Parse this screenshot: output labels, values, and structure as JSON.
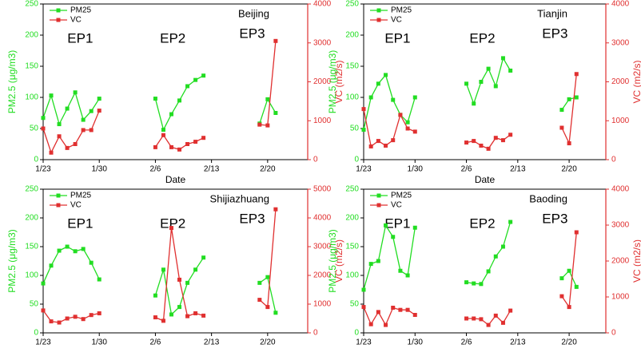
{
  "chart_data": [
    {
      "type": "line",
      "title": "Beijing",
      "annotations": [
        "EP1",
        "EP2",
        "EP3"
      ],
      "xlabel": "Date",
      "ylabel": "PM2.5 (μg/m3)",
      "y2label": "VC (m2/s)",
      "legend": "upper left",
      "x": [
        "1/23",
        "1/24",
        "1/25",
        "1/26",
        "1/27",
        "1/28",
        "1/29",
        "1/30",
        "1/31",
        "2/1",
        "2/2",
        "2/3",
        "2/4",
        "2/5",
        "2/6",
        "2/7",
        "2/8",
        "2/9",
        "2/10",
        "2/11",
        "2/12",
        "2/13",
        "2/14",
        "2/15",
        "2/16",
        "2/17",
        "2/18",
        "2/19",
        "2/20",
        "2/21"
      ],
      "xlim": [
        "1/23",
        "2/25"
      ],
      "xticks": [
        "1/23",
        "1/30",
        "2/6",
        "2/13",
        "2/20"
      ],
      "ylim": [
        0,
        250
      ],
      "yticks": [
        0,
        50,
        100,
        150,
        200,
        250
      ],
      "y2lim": [
        0,
        4000
      ],
      "y2ticks": [
        0,
        1000,
        2000,
        3000,
        4000
      ],
      "series": [
        {
          "name": "PM25",
          "color": "#22dd22",
          "marker": "square",
          "values": [
            67,
            103,
            57,
            82,
            108,
            64,
            78,
            98,
            null,
            null,
            null,
            null,
            null,
            null,
            98,
            48,
            73,
            95,
            118,
            128,
            135,
            null,
            null,
            null,
            null,
            null,
            null,
            58,
            97,
            75
          ]
        },
        {
          "name": "VC",
          "color": "#e03030",
          "marker": "square",
          "axis": "y2",
          "values": [
            800,
            180,
            600,
            300,
            400,
            760,
            760,
            1260,
            null,
            null,
            null,
            null,
            null,
            null,
            320,
            630,
            320,
            260,
            400,
            460,
            560,
            null,
            null,
            null,
            null,
            null,
            null,
            900,
            880,
            3050
          ]
        }
      ]
    },
    {
      "type": "line",
      "title": "Tianjin",
      "annotations": [
        "EP1",
        "EP2",
        "EP3"
      ],
      "xlabel": "Date",
      "ylabel": "PM2.5 (μg/m3)",
      "y2label": "VC (m2/s)",
      "legend": "upper left",
      "x": [
        "1/23",
        "1/24",
        "1/25",
        "1/26",
        "1/27",
        "1/28",
        "1/29",
        "1/30",
        "1/31",
        "2/1",
        "2/2",
        "2/3",
        "2/4",
        "2/5",
        "2/6",
        "2/7",
        "2/8",
        "2/9",
        "2/10",
        "2/11",
        "2/12",
        "2/13",
        "2/14",
        "2/15",
        "2/16",
        "2/17",
        "2/18",
        "2/19",
        "2/20",
        "2/21"
      ],
      "xlim": [
        "1/23",
        "2/25"
      ],
      "xticks": [
        "1/23",
        "1/30",
        "2/6",
        "2/13",
        "2/20"
      ],
      "ylim": [
        0,
        250
      ],
      "yticks": [
        0,
        50,
        100,
        150,
        200,
        250
      ],
      "y2lim": [
        0,
        4000
      ],
      "y2ticks": [
        0,
        1000,
        2000,
        3000,
        4000
      ],
      "series": [
        {
          "name": "PM25",
          "color": "#22dd22",
          "marker": "square",
          "values": [
            48,
            100,
            122,
            136,
            96,
            72,
            60,
            100,
            null,
            null,
            null,
            null,
            null,
            null,
            122,
            90,
            125,
            146,
            118,
            163,
            143,
            null,
            null,
            null,
            null,
            null,
            null,
            80,
            97,
            100
          ]
        },
        {
          "name": "VC",
          "color": "#e03030",
          "marker": "square",
          "axis": "y2",
          "values": [
            1300,
            340,
            480,
            360,
            500,
            1150,
            800,
            720,
            null,
            null,
            null,
            null,
            null,
            null,
            440,
            480,
            360,
            280,
            560,
            500,
            640,
            null,
            null,
            null,
            null,
            null,
            null,
            820,
            420,
            2200
          ]
        }
      ]
    },
    {
      "type": "line",
      "title": "Shijiazhuang",
      "annotations": [
        "EP1",
        "EP2",
        "EP3"
      ],
      "ylabel": "PM2.5 (μg/m3)",
      "y2label": "VC (m2/s)",
      "legend": "upper left",
      "x": [
        "1/23",
        "1/24",
        "1/25",
        "1/26",
        "1/27",
        "1/28",
        "1/29",
        "1/30",
        "1/31",
        "2/1",
        "2/2",
        "2/3",
        "2/4",
        "2/5",
        "2/6",
        "2/7",
        "2/8",
        "2/9",
        "2/10",
        "2/11",
        "2/12",
        "2/13",
        "2/14",
        "2/15",
        "2/16",
        "2/17",
        "2/18",
        "2/19",
        "2/20",
        "2/21"
      ],
      "xlim": [
        "1/23",
        "2/25"
      ],
      "xticks": [
        "1/23",
        "1/30",
        "2/6",
        "2/13",
        "2/20"
      ],
      "ylim": [
        0,
        250
      ],
      "yticks": [
        0,
        50,
        100,
        150,
        200,
        250
      ],
      "y2lim": [
        0,
        5000
      ],
      "y2ticks": [
        0,
        1000,
        2000,
        3000,
        4000,
        5000
      ],
      "series": [
        {
          "name": "PM25",
          "color": "#22dd22",
          "marker": "square",
          "values": [
            86,
            117,
            143,
            150,
            142,
            146,
            122,
            93,
            null,
            null,
            null,
            null,
            null,
            null,
            65,
            110,
            32,
            45,
            87,
            110,
            131,
            null,
            null,
            null,
            null,
            null,
            null,
            87,
            97,
            35
          ]
        },
        {
          "name": "VC",
          "color": "#e03030",
          "marker": "square",
          "axis": "y2",
          "values": [
            780,
            400,
            360,
            500,
            560,
            480,
            620,
            680,
            null,
            null,
            null,
            null,
            null,
            null,
            540,
            420,
            3650,
            1850,
            580,
            680,
            600,
            null,
            null,
            null,
            null,
            null,
            null,
            1150,
            900,
            4300
          ]
        }
      ]
    },
    {
      "type": "line",
      "title": "Baoding",
      "annotations": [
        "EP1",
        "EP2",
        "EP3"
      ],
      "ylabel": "PM2.5 (μg/m3)",
      "y2label": "VC (m2/s)",
      "legend": "upper left",
      "x": [
        "1/23",
        "1/24",
        "1/25",
        "1/26",
        "1/27",
        "1/28",
        "1/29",
        "1/30",
        "1/31",
        "2/1",
        "2/2",
        "2/3",
        "2/4",
        "2/5",
        "2/6",
        "2/7",
        "2/8",
        "2/9",
        "2/10",
        "2/11",
        "2/12",
        "2/13",
        "2/14",
        "2/15",
        "2/16",
        "2/17",
        "2/18",
        "2/19",
        "2/20",
        "2/21"
      ],
      "xlim": [
        "1/23",
        "2/25"
      ],
      "xticks": [
        "1/23",
        "1/30",
        "2/6",
        "2/13",
        "2/20"
      ],
      "ylim": [
        0,
        250
      ],
      "yticks": [
        0,
        50,
        100,
        150,
        200,
        250
      ],
      "y2lim": [
        0,
        4000
      ],
      "y2ticks": [
        0,
        1000,
        2000,
        3000,
        4000
      ],
      "series": [
        {
          "name": "PM25",
          "color": "#22dd22",
          "marker": "square",
          "values": [
            75,
            120,
            125,
            187,
            167,
            108,
            100,
            183,
            null,
            null,
            null,
            null,
            null,
            null,
            88,
            86,
            85,
            107,
            133,
            150,
            193,
            null,
            null,
            null,
            null,
            null,
            null,
            95,
            108,
            80
          ]
        },
        {
          "name": "VC",
          "color": "#e03030",
          "marker": "square",
          "axis": "y2",
          "values": [
            720,
            240,
            580,
            220,
            700,
            640,
            640,
            500,
            null,
            null,
            null,
            null,
            null,
            null,
            400,
            400,
            380,
            220,
            480,
            280,
            620,
            null,
            null,
            null,
            null,
            null,
            null,
            1020,
            720,
            2800
          ]
        }
      ]
    }
  ]
}
